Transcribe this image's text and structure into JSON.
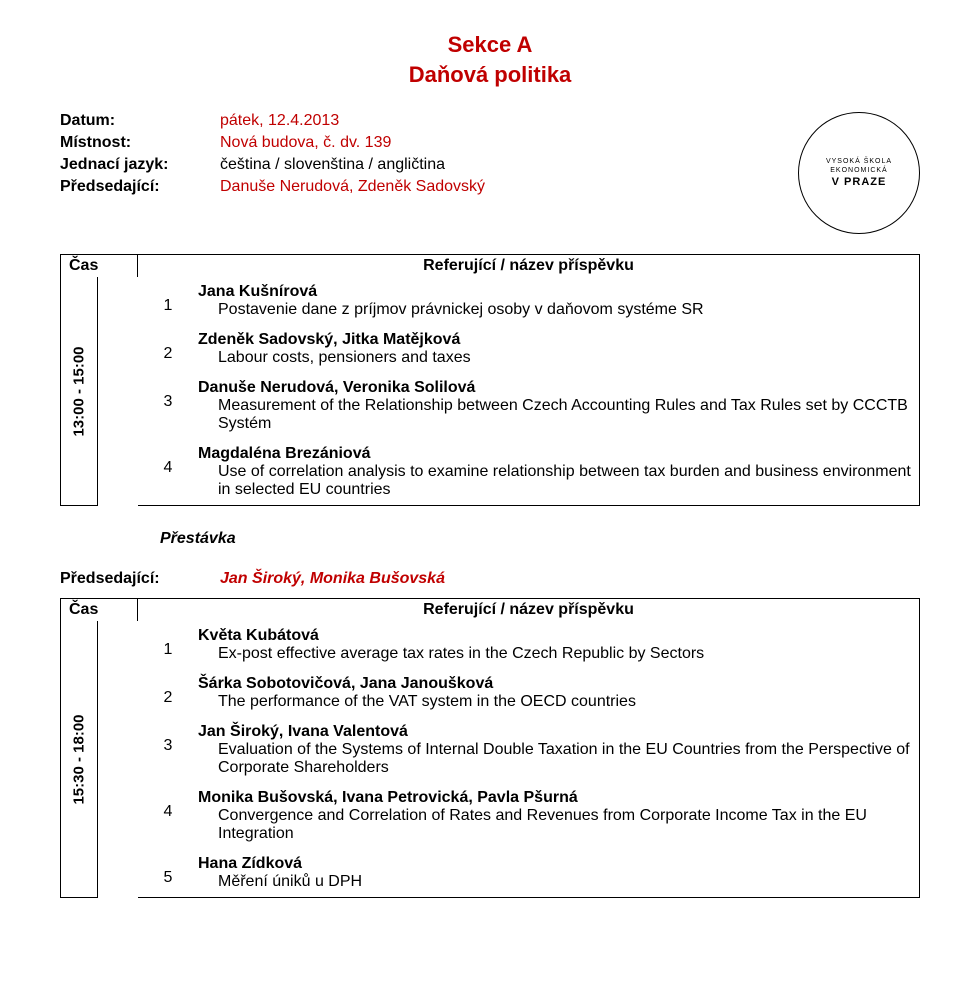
{
  "section": {
    "line1": "Sekce A",
    "line2": "Daňová politika"
  },
  "header": {
    "labels": {
      "date": "Datum:",
      "room": "Místnost:",
      "lang": "Jednací jazyk:",
      "chair": "Předsedající:"
    },
    "values": {
      "date": "pátek, 12.4.2013",
      "room": "Nová budova, č. dv. 139",
      "lang": "čeština / slovenština / angličtina",
      "chair": "Danuše Nerudová, Zdeněk Sadovský"
    }
  },
  "logo": {
    "top": "VYSOKÁ ŠKOLA EKONOMICKÁ",
    "main": "V PRAZE"
  },
  "colHead": {
    "time": "Čas",
    "ref": "Referující / název příspěvku"
  },
  "block1": {
    "time": "13:00 - 15:00",
    "items": [
      {
        "n": "1",
        "author": "Jana Kušnírová",
        "title": "Postavenie dane z príjmov právnickej osoby v daňovom systéme SR"
      },
      {
        "n": "2",
        "author": "Zdeněk Sadovský, Jitka Matějková",
        "title": "Labour costs, pensioners and taxes"
      },
      {
        "n": "3",
        "author": "Danuše Nerudová, Veronika Solilová",
        "title": "Measurement of the Relationship between Czech Accounting Rules and Tax Rules set by CCCTB Systém"
      },
      {
        "n": "4",
        "author": "Magdaléna Brezániová",
        "title": "Use of correlation analysis to examine relationship between tax burden and business environment in selected EU countries"
      }
    ]
  },
  "break": {
    "label": "Přestávka"
  },
  "chair2": {
    "label": "Předsedající:",
    "value": "Jan Široký, Monika Bušovská"
  },
  "block2": {
    "time": "15:30 - 18:00",
    "items": [
      {
        "n": "1",
        "author": "Květa Kubátová",
        "title": "Ex-post effective average tax rates in the Czech Republic by Sectors"
      },
      {
        "n": "2",
        "author": "Šárka Sobotovičová, Jana Janoušková",
        "title": "The performance of the VAT system in the OECD countries"
      },
      {
        "n": "3",
        "author": "Jan Široký, Ivana Valentová",
        "title": "Evaluation of the Systems of Internal Double Taxation in the EU Countries from the Perspective of Corporate Shareholders"
      },
      {
        "n": "4",
        "author": "Monika Bušovská, Ivana Petrovická, Pavla Pšurná",
        "title": "Convergence and Correlation of Rates and Revenues from Corporate Income Tax in the EU Integration"
      },
      {
        "n": "5",
        "author": "Hana Zídková",
        "title": "Měření úniků u DPH"
      }
    ]
  }
}
